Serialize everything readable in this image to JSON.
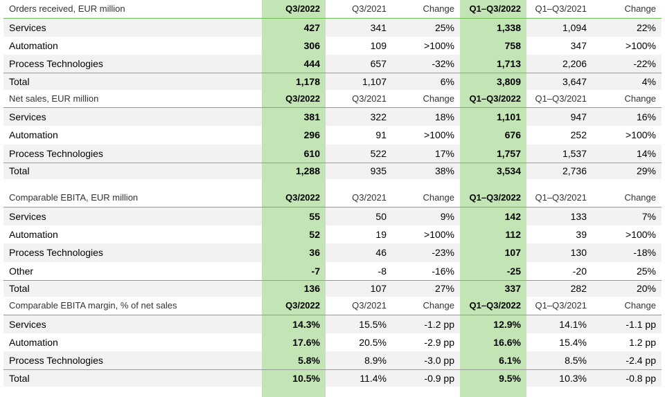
{
  "colors": {
    "highlight": "#c3e4b5",
    "rule": "#6dbb57",
    "band": "#f2f2f2"
  },
  "sections": [
    {
      "title": "Orders received, EUR million",
      "cols": [
        "Q3/2022",
        "Q3/2021",
        "Change",
        "Q1–Q3/2022",
        "Q1–Q3/2021",
        "Change"
      ],
      "rows": [
        [
          "Services",
          "427",
          "341",
          "25%",
          "1,338",
          "1,094",
          "22%"
        ],
        [
          "Automation",
          "306",
          "109",
          ">100%",
          "758",
          "347",
          ">100%"
        ],
        [
          "Process Technologies",
          "444",
          "657",
          "-32%",
          "1,713",
          "2,206",
          "-22%"
        ],
        [
          "Total",
          "1,178",
          "1,107",
          "6%",
          "3,809",
          "3,647",
          "4%"
        ]
      ]
    },
    {
      "title": "Net sales, EUR million",
      "cols": [
        "Q3/2022",
        "Q3/2021",
        "Change",
        "Q1–Q3/2022",
        "Q1–Q3/2021",
        "Change"
      ],
      "rows": [
        [
          "Services",
          "381",
          "322",
          "18%",
          "1,101",
          "947",
          "16%"
        ],
        [
          "Automation",
          "296",
          "91",
          ">100%",
          "676",
          "252",
          ">100%"
        ],
        [
          "Process Technologies",
          "610",
          "522",
          "17%",
          "1,757",
          "1,537",
          "14%"
        ],
        [
          "Total",
          "1,288",
          "935",
          "38%",
          "3,534",
          "2,736",
          "29%"
        ]
      ]
    },
    {
      "title": "Comparable EBITA, EUR million",
      "cols": [
        "Q3/2022",
        "Q3/2021",
        "Change",
        "Q1–Q3/2022",
        "Q1–Q3/2021",
        "Change"
      ],
      "rows": [
        [
          "Services",
          "55",
          "50",
          "9%",
          "142",
          "133",
          "7%"
        ],
        [
          "Automation",
          "52",
          "19",
          ">100%",
          "112",
          "39",
          ">100%"
        ],
        [
          "Process Technologies",
          "36",
          "46",
          "-23%",
          "107",
          "130",
          "-18%"
        ],
        [
          "Other",
          "-7",
          "-8",
          "-16%",
          "-25",
          "-20",
          "25%"
        ],
        [
          "Total",
          "136",
          "107",
          "27%",
          "337",
          "282",
          "20%"
        ]
      ]
    },
    {
      "title": "Comparable EBITA margin, % of net sales",
      "cols": [
        "Q3/2022",
        "Q3/2021",
        "Change",
        "Q1–Q3/2022",
        "Q1–Q3/2021",
        "Change"
      ],
      "rows": [
        [
          "Services",
          "14.3%",
          "15.5%",
          "-1.2 pp",
          "12.9%",
          "14.1%",
          "-1.1 pp"
        ],
        [
          "Automation",
          "17.6%",
          "20.5%",
          "-2.9 pp",
          "16.6%",
          "15.4%",
          "1.2 pp"
        ],
        [
          "Process Technologies",
          "5.8%",
          "8.9%",
          "-3.0 pp",
          "6.1%",
          "8.5%",
          "-2.4 pp"
        ],
        [
          "Total",
          "10.5%",
          "11.4%",
          "-0.9 pp",
          "9.5%",
          "10.3%",
          "-0.8 pp"
        ]
      ]
    }
  ]
}
